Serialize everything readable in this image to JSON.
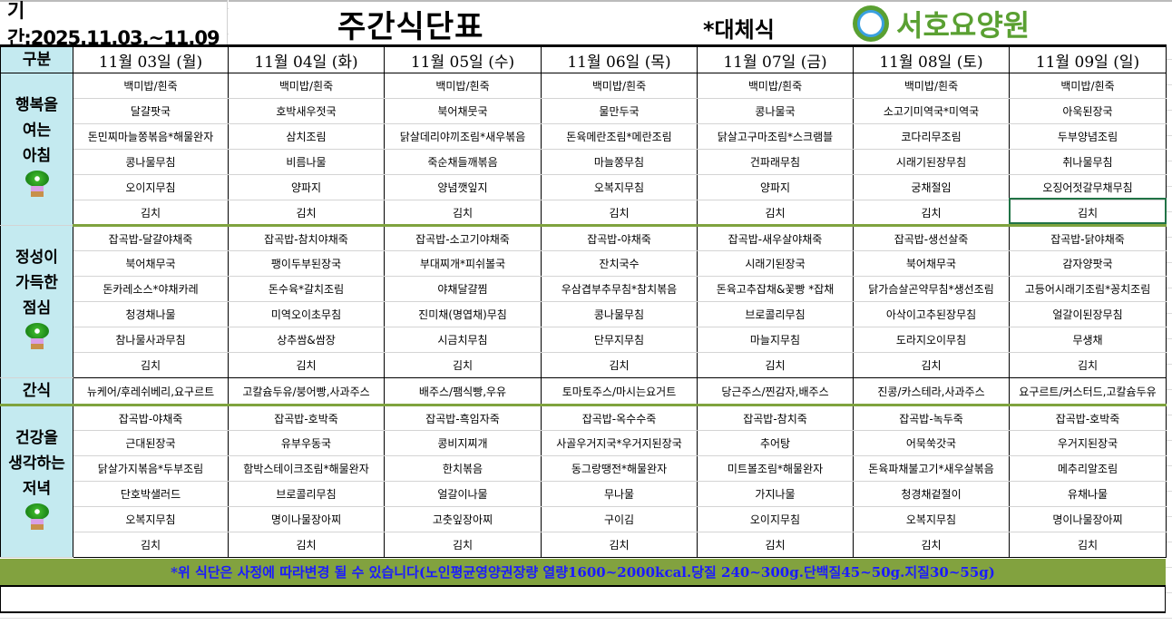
{
  "header": {
    "period": "기간:2025.11.03.~11.09",
    "title": "주간식단표",
    "alternate": "*대체식",
    "logo_text": "서호요양원"
  },
  "columns": {
    "label_header": "구분",
    "days": [
      "11월 03일 (월)",
      "11월 04일 (화)",
      "11월 05일 (수)",
      "11월 06일 (목)",
      "11월 07일 (금)",
      "11월 08일 (토)",
      "11월 09일 (일)"
    ]
  },
  "meals": [
    {
      "label": [
        "행복을",
        "여는",
        "아침"
      ],
      "icon": "flower-pot-icon",
      "rows": [
        [
          "백미밥/흰죽",
          "백미밥/흰죽",
          "백미밥/흰죽",
          "백미밥/흰죽",
          "백미밥/흰죽",
          "백미밥/흰죽",
          "백미밥/흰죽"
        ],
        [
          "달걀팟국",
          "호박새우젓국",
          "북어채뭇국",
          "물만두국",
          "콩나물국",
          "소고기미역국*미역국",
          "아욱된장국"
        ],
        [
          "돈민찌마늘쫑볶음*해물완자",
          "삼치조림",
          "닭살데리야끼조림*새우볶음",
          "돈육메란조림*메란조림",
          "닭살고구마조림*스크램블",
          "코다리무조림",
          "두부양념조림"
        ],
        [
          "콩나물무침",
          "비름나물",
          "죽순채들깨볶음",
          "마늘쫑무침",
          "건파래무침",
          "시래기된장무침",
          "취나물무침"
        ],
        [
          "오이지무침",
          "양파지",
          "양념깻잎지",
          "오복지무침",
          "양파지",
          "궁채절임",
          "오징어젓갈무채무침"
        ],
        [
          "김치",
          "김치",
          "김치",
          "김치",
          "김치",
          "김치",
          "김치"
        ]
      ]
    },
    {
      "label": [
        "정성이",
        "가득한",
        "점심"
      ],
      "icon": "flower-pot-icon",
      "rows": [
        [
          "잡곡밥-달걀야채죽",
          "잡곡밥-참치야채죽",
          "잡곡밥-소고기야채죽",
          "잡곡밥-야채죽",
          "잡곡밥-새우살야채죽",
          "잡곡밥-생선살죽",
          "잡곡밥-닭야채죽"
        ],
        [
          "북어채무국",
          "팽이두부된장국",
          "부대찌개*피쉬볼국",
          "잔치국수",
          "시래기된장국",
          "북어채무국",
          "감자양팟국"
        ],
        [
          "돈카레소스*야채카레",
          "돈수육*갈치조림",
          "야채달걀찜",
          "우삼겹부추무침*참치볶음",
          "돈육고추잡채&꽃빵 *잡채",
          "닭가슴살곤약무침*생선조림",
          "고등어시래기조림*꽁치조림"
        ],
        [
          "청경채나물",
          "미역오이초무침",
          "진미채(명엽채)무침",
          "콩나물무침",
          "브로콜리무침",
          "아삭이고추된장무침",
          "얼갈이된장무침"
        ],
        [
          "참나물사과무침",
          "상추쌈&쌈장",
          "시금치무침",
          "단무지무침",
          "마늘지무침",
          "도라지오이무침",
          "무생채"
        ],
        [
          "김치",
          "김치",
          "김치",
          "김치",
          "김치",
          "김치",
          "김치"
        ]
      ]
    },
    {
      "label": [
        "간식"
      ],
      "rows": [
        [
          "뉴케어/후레쉬베리,요구르트",
          "고칼슘두유/붕어빵,사과주스",
          "배주스/팸식빵,우유",
          "토마토주스/마시는요거트",
          "당근주스/찐감자,배주스",
          "진콩/카스테라,사과주스",
          "요구르트/커스터드,고칼슘두유"
        ]
      ]
    },
    {
      "label": [
        "건강을",
        "생각하는",
        "저녁"
      ],
      "icon": "flower-pot-icon",
      "rows": [
        [
          "잡곡밥-야채죽",
          "잡곡밥-호박죽",
          "잡곡밥-흑임자죽",
          "잡곡밥-옥수수죽",
          "잡곡밥-참치죽",
          "잡곡밥-녹두죽",
          "잡곡밥-호박죽"
        ],
        [
          "근대된장국",
          "유부우동국",
          "콩비지찌개",
          "사골우거지국*우거지된장국",
          "추어탕",
          "어묵쑥갓국",
          "우거지된장국"
        ],
        [
          "닭살가지볶음*두부조림",
          "함박스테이크조림*해물완자",
          "한치볶음",
          "동그랑땡전*해물완자",
          "미트볼조림*해물완자",
          "돈육파채불고기*새우살볶음",
          "메추리알조림"
        ],
        [
          "단호박샐러드",
          "브로콜리무침",
          "얼갈이나물",
          "무나물",
          "가지나물",
          "청경채겉절이",
          "유채나물"
        ],
        [
          "오복지무침",
          "명이나물장아찌",
          "고춧잎장아찌",
          "구이김",
          "오이지무침",
          "오복지무침",
          "명이나물장아찌"
        ],
        [
          "김치",
          "김치",
          "김치",
          "김치",
          "김치",
          "김치",
          "김치"
        ]
      ]
    }
  ],
  "footer": {
    "note": "*위 식단은 사정에 따라변경 될 수 있습니다(노인평균영양권장량 열량1600~2000kcal.당질 240~300g.단백질45~50g.지질30~55g)"
  },
  "colors": {
    "label_bg": "#c4eaf0",
    "section_divider": "#7fa33e",
    "footer_bg": "#82a23f",
    "footer_text": "#1b1bff",
    "logo": "#5aa032"
  }
}
